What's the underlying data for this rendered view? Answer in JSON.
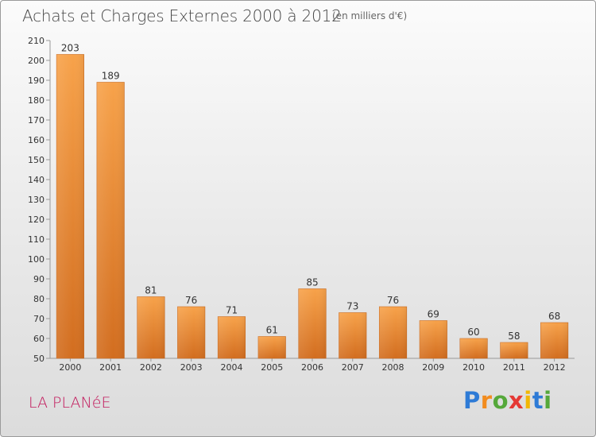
{
  "chart_data": {
    "type": "bar",
    "title": "Achats et Charges Externes 2000 à 2012",
    "subtitle": "(en milliers d'€)",
    "categories": [
      "2000",
      "2001",
      "2002",
      "2003",
      "2004",
      "2005",
      "2006",
      "2007",
      "2008",
      "2009",
      "2010",
      "2011",
      "2012"
    ],
    "values": [
      203,
      189,
      81,
      76,
      71,
      61,
      85,
      73,
      76,
      69,
      60,
      58,
      68
    ],
    "ylim": [
      50,
      210
    ],
    "yticks": [
      50,
      60,
      70,
      80,
      90,
      100,
      110,
      120,
      130,
      140,
      150,
      160,
      170,
      180,
      190,
      200,
      210
    ],
    "xlabel": "",
    "ylabel": "",
    "grid": false,
    "legend": "none",
    "bar_color": "#f0913a",
    "bar_color_dark": "#cf6a1c"
  },
  "commune_label": "LA PLANéE",
  "brand": "Proxiti",
  "colors": {
    "title": "#444444",
    "commune": "#c2185b"
  }
}
